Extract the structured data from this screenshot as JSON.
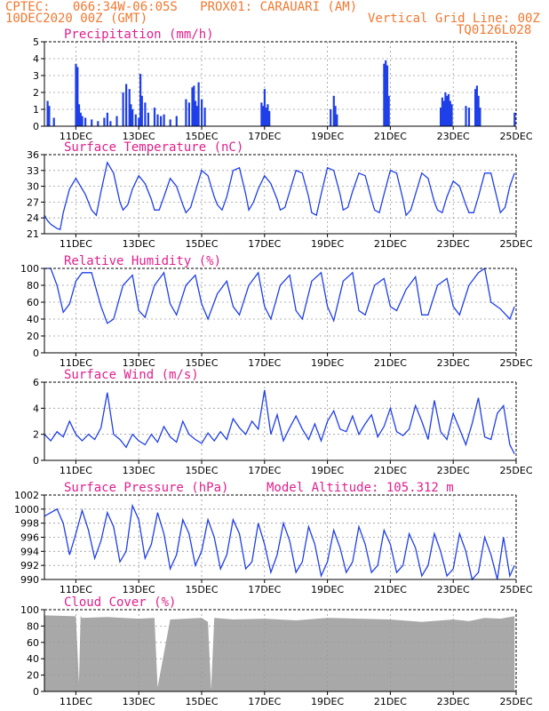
{
  "header": {
    "line1": "CPTEC:   066:34W-06:05S   PROX01: CARAUARI (AM)",
    "line2_left": "10DEC2020 00Z (GMT)",
    "line2_right": "Vertical Grid Line: 00Z",
    "line3_right": "TQ0126L028"
  },
  "colors": {
    "header": "#f07830",
    "title": "#e0208c",
    "series": "#1f3fe8",
    "bars": "#1f3fe8",
    "cloud": "#a8a8a8",
    "grid": "#9a9a9a"
  },
  "xaxis": {
    "start_day": 10,
    "end_day": 25,
    "tick_labels": [
      "11DEC",
      "13DEC",
      "15DEC",
      "17DEC",
      "19DEC",
      "21DEC",
      "23DEC",
      "25DEC"
    ],
    "tick_days": [
      11,
      13,
      15,
      17,
      19,
      21,
      23,
      25
    ]
  },
  "chart_data": [
    {
      "id": "precip",
      "type": "bar",
      "title": "Precipitation (mm/h)",
      "ylim": [
        0,
        5
      ],
      "yticks": [
        0,
        1,
        2,
        3,
        4,
        5
      ],
      "x_units": "day of Dec 2020",
      "x": [
        10.1,
        10.15,
        10.3,
        11.0,
        11.05,
        11.1,
        11.15,
        11.2,
        11.3,
        11.5,
        11.7,
        11.9,
        12.0,
        12.1,
        12.3,
        12.5,
        12.6,
        12.7,
        12.75,
        12.8,
        12.9,
        13.0,
        13.05,
        13.1,
        13.2,
        13.3,
        13.5,
        13.6,
        13.7,
        13.8,
        14.0,
        14.2,
        14.5,
        14.6,
        14.7,
        14.75,
        14.8,
        14.85,
        14.9,
        15.0,
        15.1,
        16.9,
        16.95,
        17.0,
        17.05,
        17.1,
        17.15,
        19.1,
        19.2,
        19.25,
        19.3,
        20.8,
        20.85,
        20.9,
        20.95,
        22.6,
        22.65,
        22.7,
        22.75,
        22.8,
        22.85,
        22.9,
        22.95,
        23.4,
        23.5,
        23.7,
        23.75,
        23.8,
        23.85,
        24.95
      ],
      "values": [
        1.5,
        1.2,
        0.5,
        3.7,
        3.5,
        1.3,
        0.8,
        0.6,
        0.5,
        0.4,
        0.3,
        0.5,
        0.8,
        0.3,
        0.6,
        2.0,
        2.5,
        2.2,
        1.3,
        1.0,
        0.7,
        0.5,
        3.1,
        1.8,
        1.4,
        0.8,
        1.1,
        0.7,
        0.6,
        0.7,
        0.4,
        0.6,
        1.6,
        1.4,
        2.3,
        2.4,
        1.5,
        1.2,
        2.6,
        1.6,
        1.1,
        1.4,
        1.2,
        2.2,
        1.1,
        1.3,
        0.9,
        1.0,
        1.8,
        1.2,
        0.7,
        3.7,
        3.9,
        3.6,
        1.8,
        1.1,
        1.7,
        1.5,
        2.0,
        1.8,
        1.9,
        1.5,
        1.3,
        1.2,
        1.1,
        2.2,
        2.4,
        1.8,
        1.1,
        0.8
      ]
    },
    {
      "id": "temp",
      "type": "line",
      "title": "Surface Temperature (nC)",
      "ylim": [
        21,
        36
      ],
      "yticks": [
        21,
        24,
        27,
        30,
        33,
        36
      ],
      "x": [
        10.0,
        10.1,
        10.2,
        10.4,
        10.5,
        10.6,
        10.8,
        11.0,
        11.3,
        11.5,
        11.65,
        11.8,
        12.0,
        12.2,
        12.4,
        12.5,
        12.65,
        12.8,
        13.0,
        13.2,
        13.4,
        13.5,
        13.65,
        13.8,
        14.0,
        14.2,
        14.4,
        14.5,
        14.65,
        14.8,
        15.0,
        15.2,
        15.4,
        15.5,
        15.65,
        15.8,
        16.0,
        16.2,
        16.4,
        16.5,
        16.65,
        16.8,
        17.0,
        17.2,
        17.4,
        17.5,
        17.65,
        17.8,
        18.0,
        18.2,
        18.4,
        18.5,
        18.65,
        18.8,
        19.0,
        19.2,
        19.4,
        19.5,
        19.65,
        19.8,
        20.0,
        20.2,
        20.4,
        20.5,
        20.65,
        20.8,
        21.0,
        21.2,
        21.4,
        21.5,
        21.65,
        21.8,
        22.0,
        22.2,
        22.4,
        22.5,
        22.65,
        22.8,
        23.0,
        23.2,
        23.4,
        23.5,
        23.65,
        23.8,
        24.0,
        24.2,
        24.4,
        24.5,
        24.65,
        24.8,
        24.95
      ],
      "values": [
        24.5,
        23.5,
        22.8,
        22.0,
        21.8,
        25.0,
        29.5,
        31.5,
        28.5,
        25.5,
        24.5,
        29.0,
        34.5,
        32.5,
        27.0,
        25.5,
        26.5,
        29.5,
        32.0,
        30.5,
        27.5,
        25.5,
        25.5,
        28.0,
        31.5,
        30.0,
        26.5,
        25.0,
        26.0,
        29.0,
        33.0,
        32.0,
        28.0,
        26.5,
        25.5,
        28.0,
        33.0,
        33.5,
        28.5,
        25.5,
        27.0,
        29.5,
        32.0,
        30.5,
        27.5,
        25.5,
        26.0,
        29.0,
        33.0,
        32.5,
        28.0,
        25.0,
        24.5,
        28.5,
        33.5,
        33.0,
        28.5,
        25.5,
        26.0,
        29.0,
        32.5,
        32.0,
        27.5,
        25.5,
        25.0,
        28.5,
        33.0,
        32.5,
        27.5,
        24.5,
        25.5,
        28.5,
        32.5,
        31.5,
        27.0,
        25.5,
        25.0,
        28.0,
        31.0,
        30.0,
        26.5,
        25.0,
        25.0,
        28.0,
        32.5,
        32.5,
        27.5,
        25.0,
        26.0,
        30.0,
        32.5
      ]
    },
    {
      "id": "rh",
      "type": "line",
      "title": "Relative Humidity (%)",
      "ylim": [
        0,
        100
      ],
      "yticks": [
        0,
        20,
        40,
        60,
        80,
        100
      ],
      "x": [
        10.0,
        10.2,
        10.4,
        10.6,
        10.8,
        11.0,
        11.2,
        11.5,
        11.8,
        12.0,
        12.2,
        12.5,
        12.8,
        13.0,
        13.2,
        13.5,
        13.8,
        14.0,
        14.2,
        14.5,
        14.8,
        15.0,
        15.2,
        15.5,
        15.8,
        16.0,
        16.2,
        16.5,
        16.8,
        17.0,
        17.2,
        17.5,
        17.8,
        18.0,
        18.2,
        18.5,
        18.8,
        19.0,
        19.2,
        19.5,
        19.8,
        20.0,
        20.2,
        20.5,
        20.8,
        21.0,
        21.2,
        21.5,
        21.8,
        22.0,
        22.2,
        22.5,
        22.8,
        23.0,
        23.2,
        23.5,
        23.8,
        24.0,
        24.2,
        24.5,
        24.8,
        24.95
      ],
      "values": [
        100,
        100,
        80,
        48,
        58,
        85,
        95,
        95,
        55,
        35,
        40,
        80,
        92,
        50,
        42,
        80,
        95,
        58,
        45,
        80,
        92,
        58,
        40,
        70,
        85,
        55,
        45,
        80,
        95,
        55,
        40,
        80,
        92,
        50,
        40,
        85,
        95,
        55,
        38,
        85,
        95,
        50,
        45,
        80,
        88,
        55,
        50,
        75,
        90,
        45,
        45,
        80,
        88,
        55,
        45,
        80,
        95,
        100,
        60,
        52,
        40,
        55
      ]
    },
    {
      "id": "wind",
      "type": "line",
      "title": "Surface Wind (m/s)",
      "ylim": [
        0,
        6
      ],
      "yticks": [
        0,
        2,
        4,
        6
      ],
      "x": [
        10.0,
        10.2,
        10.4,
        10.6,
        10.8,
        11.0,
        11.2,
        11.4,
        11.6,
        11.8,
        12.0,
        12.2,
        12.4,
        12.6,
        12.8,
        13.0,
        13.2,
        13.4,
        13.6,
        13.8,
        14.0,
        14.2,
        14.4,
        14.6,
        14.8,
        15.0,
        15.2,
        15.4,
        15.6,
        15.8,
        16.0,
        16.2,
        16.4,
        16.6,
        16.8,
        17.0,
        17.2,
        17.4,
        17.6,
        17.8,
        18.0,
        18.2,
        18.4,
        18.6,
        18.8,
        19.0,
        19.2,
        19.4,
        19.6,
        19.8,
        20.0,
        20.2,
        20.4,
        20.6,
        20.8,
        21.0,
        21.2,
        21.4,
        21.6,
        21.8,
        22.0,
        22.2,
        22.4,
        22.6,
        22.8,
        23.0,
        23.2,
        23.4,
        23.6,
        23.8,
        24.0,
        24.2,
        24.4,
        24.6,
        24.8,
        24.95
      ],
      "values": [
        2.0,
        1.5,
        2.2,
        1.8,
        3.0,
        2.0,
        1.5,
        2.0,
        1.6,
        2.5,
        5.2,
        2.0,
        1.6,
        1.0,
        2.0,
        1.5,
        1.2,
        2.0,
        1.4,
        2.6,
        1.8,
        1.4,
        3.0,
        2.0,
        1.6,
        1.3,
        2.1,
        1.5,
        2.2,
        1.6,
        3.2,
        2.5,
        2.0,
        3.0,
        2.4,
        5.4,
        2.0,
        3.5,
        1.5,
        2.5,
        3.4,
        2.4,
        1.6,
        2.8,
        1.5,
        3.0,
        3.8,
        2.4,
        2.2,
        3.4,
        2.0,
        2.8,
        3.5,
        1.8,
        2.6,
        4.0,
        2.2,
        1.9,
        2.4,
        4.2,
        3.0,
        1.6,
        4.6,
        2.2,
        1.6,
        3.6,
        2.4,
        1.2,
        2.8,
        4.8,
        1.8,
        1.6,
        3.6,
        4.2,
        1.2,
        0.5
      ]
    },
    {
      "id": "pressure",
      "type": "line",
      "title": "Surface Pressure (hPa)",
      "annotation": "Model Altitude: 105.312 m",
      "ylim": [
        990,
        1002
      ],
      "yticks": [
        990,
        992,
        994,
        996,
        998,
        1000,
        1002
      ],
      "x": [
        10.0,
        10.2,
        10.4,
        10.6,
        10.8,
        11.0,
        11.2,
        11.4,
        11.6,
        11.8,
        12.0,
        12.2,
        12.4,
        12.6,
        12.8,
        13.0,
        13.2,
        13.4,
        13.6,
        13.8,
        14.0,
        14.2,
        14.4,
        14.6,
        14.8,
        15.0,
        15.2,
        15.4,
        15.6,
        15.8,
        16.0,
        16.2,
        16.4,
        16.6,
        16.8,
        17.0,
        17.2,
        17.4,
        17.6,
        17.8,
        18.0,
        18.2,
        18.4,
        18.6,
        18.8,
        19.0,
        19.2,
        19.4,
        19.6,
        19.8,
        20.0,
        20.2,
        20.4,
        20.6,
        20.8,
        21.0,
        21.2,
        21.4,
        21.6,
        21.8,
        22.0,
        22.2,
        22.4,
        22.6,
        22.8,
        23.0,
        23.2,
        23.4,
        23.6,
        23.8,
        24.0,
        24.2,
        24.4,
        24.6,
        24.8,
        24.95
      ],
      "values": [
        999.0,
        999.5,
        1000.0,
        998.0,
        993.5,
        996.5,
        999.8,
        997.0,
        993.0,
        995.5,
        999.5,
        997.5,
        992.5,
        994.0,
        1000.5,
        998.5,
        993.0,
        995.0,
        999.5,
        996.5,
        991.5,
        993.5,
        998.5,
        996.5,
        992.0,
        994.0,
        998.5,
        996.0,
        991.5,
        993.5,
        998.5,
        996.5,
        991.5,
        992.5,
        998.0,
        995.0,
        991.0,
        993.5,
        998.0,
        995.5,
        991.0,
        992.5,
        997.5,
        995.0,
        990.5,
        992.5,
        997.0,
        994.5,
        991.0,
        992.5,
        997.5,
        995.0,
        991.0,
        992.0,
        997.0,
        995.0,
        991.0,
        992.0,
        996.5,
        994.5,
        990.5,
        992.0,
        996.5,
        994.0,
        990.5,
        991.5,
        996.5,
        994.0,
        990.0,
        991.0,
        996.0,
        993.5,
        990.0,
        996.0,
        990.5,
        992.0
      ]
    },
    {
      "id": "cloud",
      "type": "area",
      "title": "Cloud Cover (%)",
      "ylim": [
        0,
        100
      ],
      "yticks": [
        0,
        20,
        40,
        60,
        80,
        100
      ],
      "x": [
        10.0,
        11.0,
        11.1,
        11.15,
        11.2,
        12.0,
        13.0,
        13.5,
        13.6,
        14.0,
        15.0,
        15.2,
        15.3,
        15.4,
        16.0,
        17.0,
        18.0,
        19.0,
        20.0,
        21.0,
        22.0,
        23.0,
        23.5,
        24.0,
        24.5,
        24.95
      ],
      "values": [
        93,
        92,
        10,
        92,
        90,
        91,
        89,
        90,
        5,
        88,
        90,
        85,
        2,
        90,
        88,
        89,
        87,
        90,
        89,
        88,
        85,
        88,
        86,
        90,
        89,
        92
      ]
    }
  ]
}
